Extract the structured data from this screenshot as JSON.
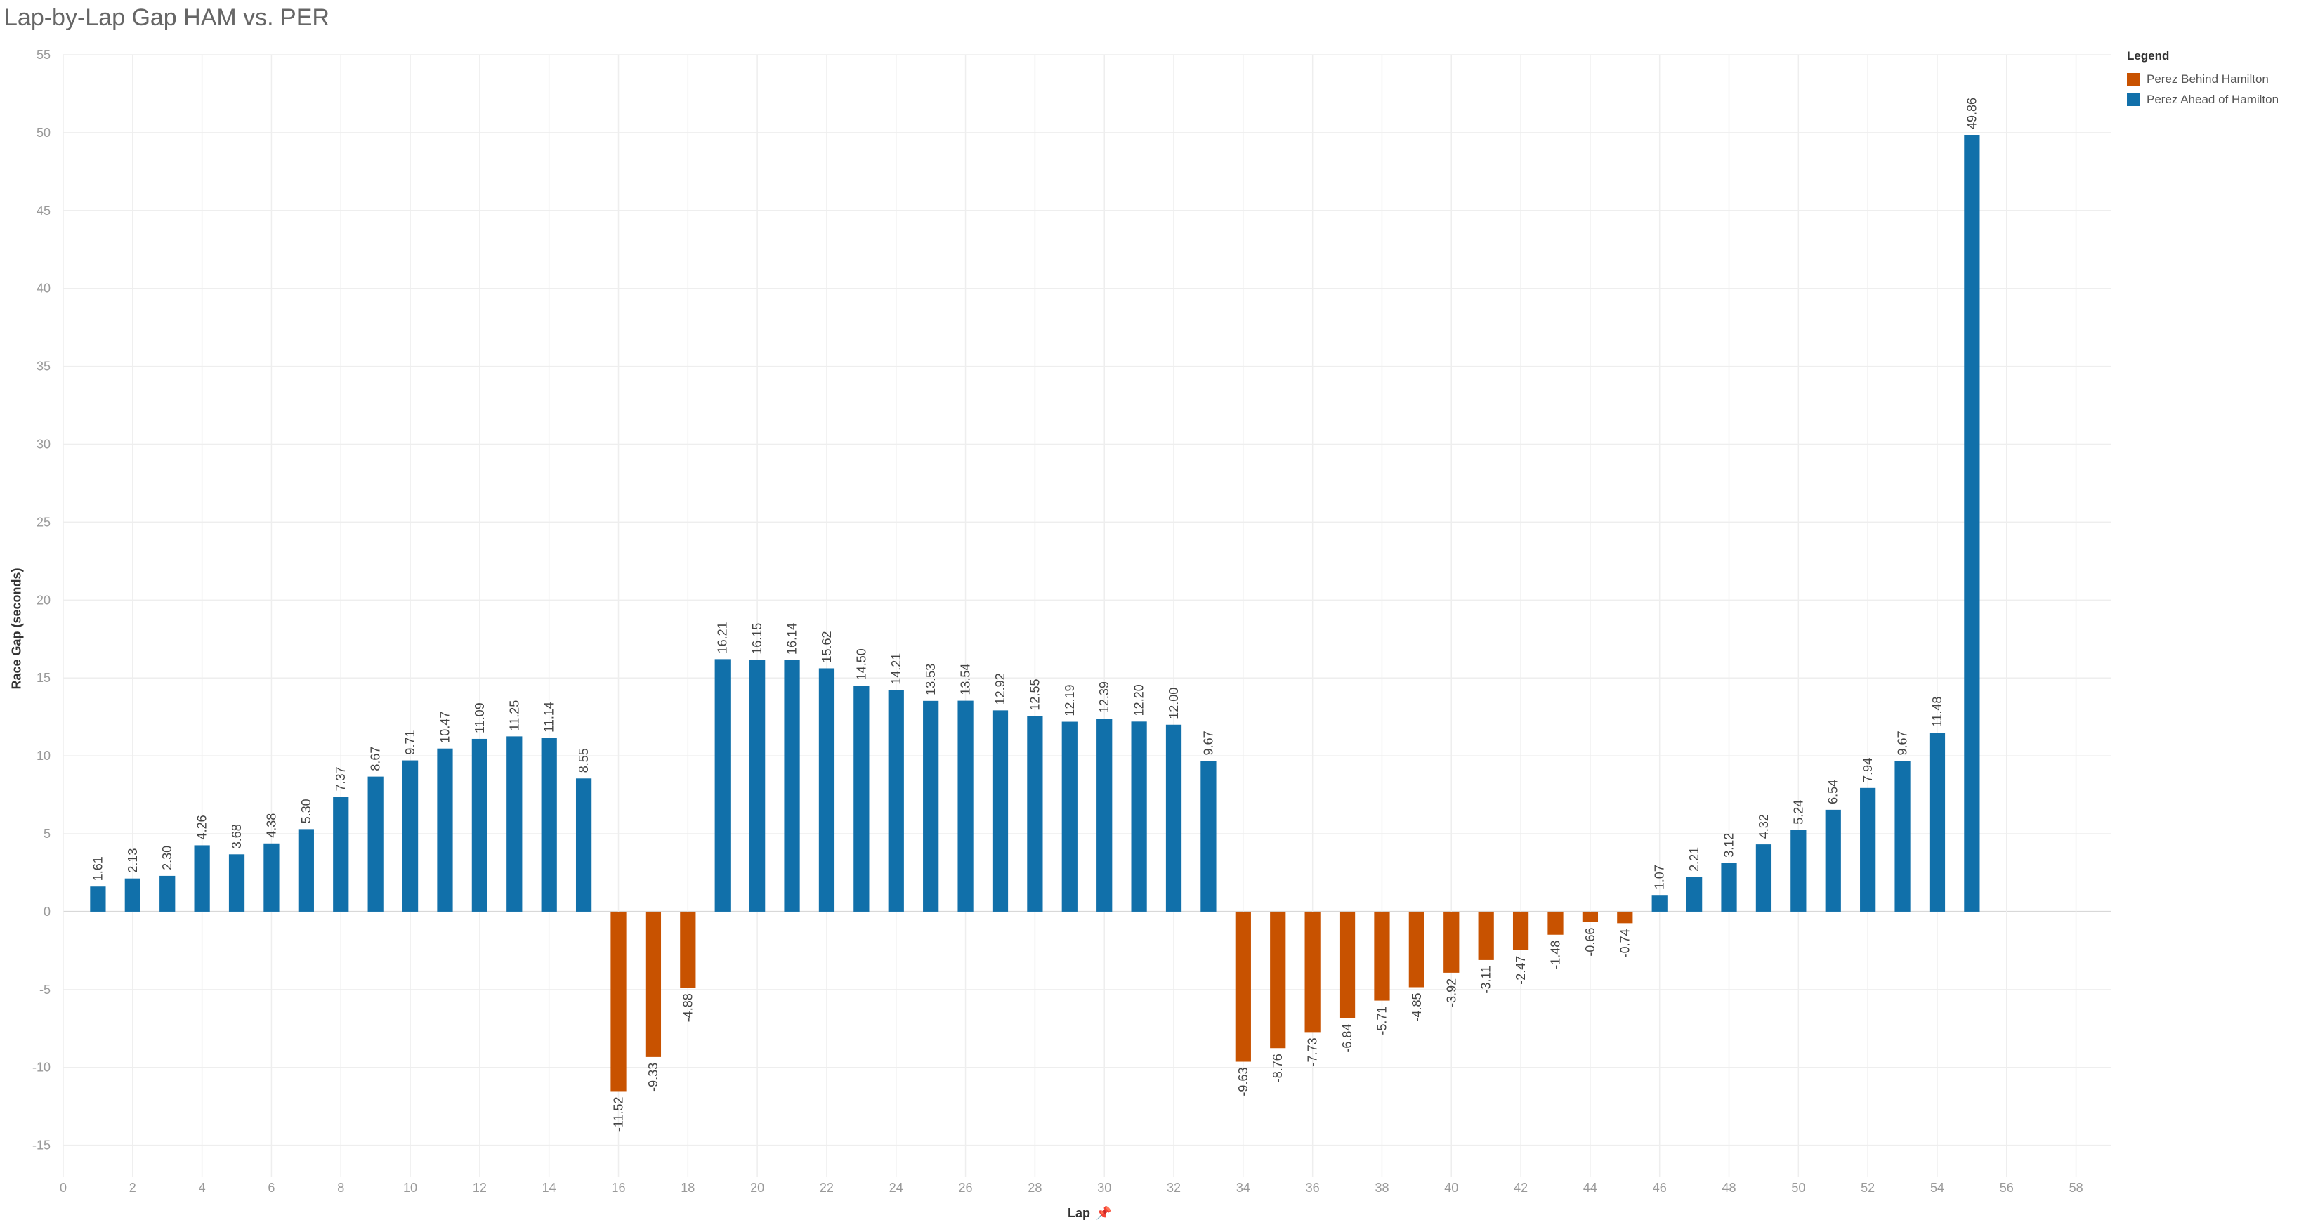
{
  "colors": {
    "ahead": "#1170aa",
    "behind": "#c85200",
    "grid": "#eeeeee",
    "tick": "#999999",
    "label": "#444444"
  },
  "legend": {
    "title": "Legend",
    "items": [
      {
        "label": "Perez Behind Hamilton",
        "color": "#c85200"
      },
      {
        "label": "Perez Ahead of Hamilton",
        "color": "#1170aa"
      }
    ]
  },
  "chart_data": {
    "type": "bar",
    "title": "Lap-by-Lap Gap HAM vs. PER",
    "xlabel": "Lap",
    "ylabel": "Race Gap (seconds)",
    "xlim": [
      0,
      59
    ],
    "ylim": [
      -17,
      55
    ],
    "xticks": [
      0,
      2,
      4,
      6,
      8,
      10,
      12,
      14,
      16,
      18,
      20,
      22,
      24,
      26,
      28,
      30,
      32,
      34,
      36,
      38,
      40,
      42,
      44,
      46,
      48,
      50,
      52,
      54,
      56,
      58
    ],
    "yticks": [
      -15,
      -10,
      -5,
      0,
      5,
      10,
      15,
      20,
      25,
      30,
      35,
      40,
      45,
      50,
      55
    ],
    "grid": true,
    "legend_position": "top-right",
    "x": [
      1,
      2,
      3,
      4,
      5,
      6,
      7,
      8,
      9,
      10,
      11,
      12,
      13,
      14,
      15,
      16,
      17,
      18,
      19,
      20,
      21,
      22,
      23,
      24,
      25,
      26,
      27,
      28,
      29,
      30,
      31,
      32,
      33,
      34,
      35,
      36,
      37,
      38,
      39,
      40,
      41,
      42,
      43,
      44,
      45,
      46,
      47,
      48,
      49,
      50,
      51,
      52,
      53,
      54,
      55
    ],
    "values": [
      1.61,
      2.13,
      2.3,
      4.26,
      3.68,
      4.38,
      5.3,
      7.37,
      8.67,
      9.71,
      10.47,
      11.09,
      11.25,
      11.14,
      8.55,
      -11.52,
      -9.33,
      -4.88,
      16.21,
      16.15,
      16.14,
      15.62,
      14.5,
      14.21,
      13.53,
      13.54,
      12.92,
      12.55,
      12.19,
      12.39,
      12.2,
      12.0,
      9.67,
      -9.63,
      -8.76,
      -7.73,
      -6.84,
      -5.71,
      -4.85,
      -3.92,
      -3.11,
      -2.47,
      -1.48,
      -0.66,
      -0.74,
      1.07,
      2.21,
      3.12,
      4.32,
      5.24,
      6.54,
      7.94,
      9.67,
      11.48,
      49.86
    ],
    "data_labels": [
      "1.61",
      "2.13",
      "2.30",
      "4.26",
      "3.68",
      "4.38",
      "5.30",
      "7.37",
      "8.67",
      "9.71",
      "10.47",
      "11.09",
      "11.25",
      "11.14",
      "8.55",
      "-11.52",
      "-9.33",
      "-4.88",
      "16.21",
      "16.15",
      "16.14",
      "15.62",
      "14.50",
      "14.21",
      "13.53",
      "13.54",
      "12.92",
      "12.55",
      "12.19",
      "12.39",
      "12.20",
      "12.00",
      "9.67",
      "-9.63",
      "-8.76",
      "-7.73",
      "-6.84",
      "-5.71",
      "-4.85",
      "-3.92",
      "-3.11",
      "-2.47",
      "-1.48",
      "-0.66",
      "-0.74",
      "1.07",
      "2.21",
      "3.12",
      "4.32",
      "5.24",
      "6.54",
      "7.94",
      "9.67",
      "11.48",
      "49.86"
    ]
  }
}
